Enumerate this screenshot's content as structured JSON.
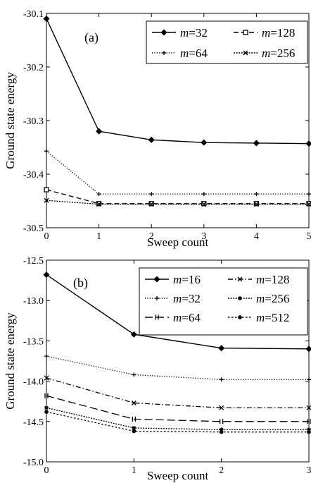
{
  "chart_data": [
    {
      "panel_label": "(a)",
      "type": "line",
      "xlabel": "Sweep count",
      "ylabel": "Ground state energy",
      "xlim": [
        0,
        5
      ],
      "ylim": [
        -30.5,
        -30.1
      ],
      "xticks": [
        0,
        1,
        2,
        3,
        4,
        5
      ],
      "xtick_labels": [
        "0",
        "1",
        "2",
        "3",
        "4",
        "5"
      ],
      "yticks": [
        -30.1,
        -30.2,
        -30.3,
        -30.4,
        -30.5
      ],
      "ytick_labels": [
        "-30.1",
        "-30.2",
        "-30.3",
        "-30.4",
        "-30.5"
      ],
      "grid": false,
      "legend_position": "top-right",
      "legend_columns": 2,
      "series": [
        {
          "name": "m=32",
          "marker": "diamond",
          "dash": "solid",
          "x": [
            0,
            1,
            2,
            3,
            4,
            5
          ],
          "y": [
            -30.11,
            -30.32,
            -30.336,
            -30.341,
            -30.342,
            -30.343
          ]
        },
        {
          "name": "m=64",
          "marker": "plus",
          "dash": "dotted",
          "x": [
            0,
            1,
            2,
            3,
            4,
            5
          ],
          "y": [
            -30.357,
            -30.437,
            -30.437,
            -30.437,
            -30.437,
            -30.437
          ]
        },
        {
          "name": "m=128",
          "marker": "square",
          "dash": "dashed",
          "x": [
            0,
            1,
            2,
            3,
            4,
            5
          ],
          "y": [
            -30.429,
            -30.455,
            -30.455,
            -30.455,
            -30.455,
            -30.455
          ]
        },
        {
          "name": "m=256",
          "marker": "x",
          "dash": "densedot",
          "x": [
            0,
            1,
            2,
            3,
            4,
            5
          ],
          "y": [
            -30.449,
            -30.456,
            -30.456,
            -30.456,
            -30.456,
            -30.456
          ]
        }
      ]
    },
    {
      "panel_label": "(b)",
      "type": "line",
      "xlabel": "Sweep count",
      "ylabel": "Ground state energy",
      "xlim": [
        0,
        3
      ],
      "ylim": [
        -15.0,
        -12.5
      ],
      "xticks": [
        0,
        1,
        2,
        3
      ],
      "xtick_labels": [
        "0",
        "1",
        "2",
        "3"
      ],
      "yticks": [
        -12.5,
        -13.0,
        -13.5,
        -14.0,
        -14.5,
        -15.0
      ],
      "ytick_labels": [
        "-12.5",
        "-13.0",
        "-13.5",
        "-14.0",
        "-14.5",
        "-15.0"
      ],
      "grid": false,
      "legend_position": "top-right",
      "legend_columns": 2,
      "series": [
        {
          "name": "m=16",
          "marker": "diamond",
          "dash": "solid",
          "x": [
            0,
            1,
            2,
            3
          ],
          "y": [
            -12.68,
            -13.42,
            -13.59,
            -13.6
          ]
        },
        {
          "name": "m=32",
          "marker": "plus",
          "dash": "dotted",
          "x": [
            0,
            1,
            2,
            3
          ],
          "y": [
            -13.69,
            -13.92,
            -13.98,
            -13.98
          ]
        },
        {
          "name": "m=64",
          "marker": "tick",
          "dash": "longdash",
          "x": [
            0,
            1,
            2,
            3
          ],
          "y": [
            -14.18,
            -14.47,
            -14.5,
            -14.5
          ]
        },
        {
          "name": "m=128",
          "marker": "x",
          "dash": "dashdot",
          "x": [
            0,
            1,
            2,
            3
          ],
          "y": [
            -13.96,
            -14.27,
            -14.33,
            -14.33
          ]
        },
        {
          "name": "m=256",
          "marker": "star",
          "dash": "densedot",
          "x": [
            0,
            1,
            2,
            3
          ],
          "y": [
            -14.33,
            -14.58,
            -14.6,
            -14.6
          ]
        },
        {
          "name": "m=512",
          "marker": "dot",
          "dash": "dotdash2",
          "x": [
            0,
            1,
            2,
            3
          ],
          "y": [
            -14.38,
            -14.62,
            -14.63,
            -14.63
          ]
        }
      ]
    }
  ]
}
